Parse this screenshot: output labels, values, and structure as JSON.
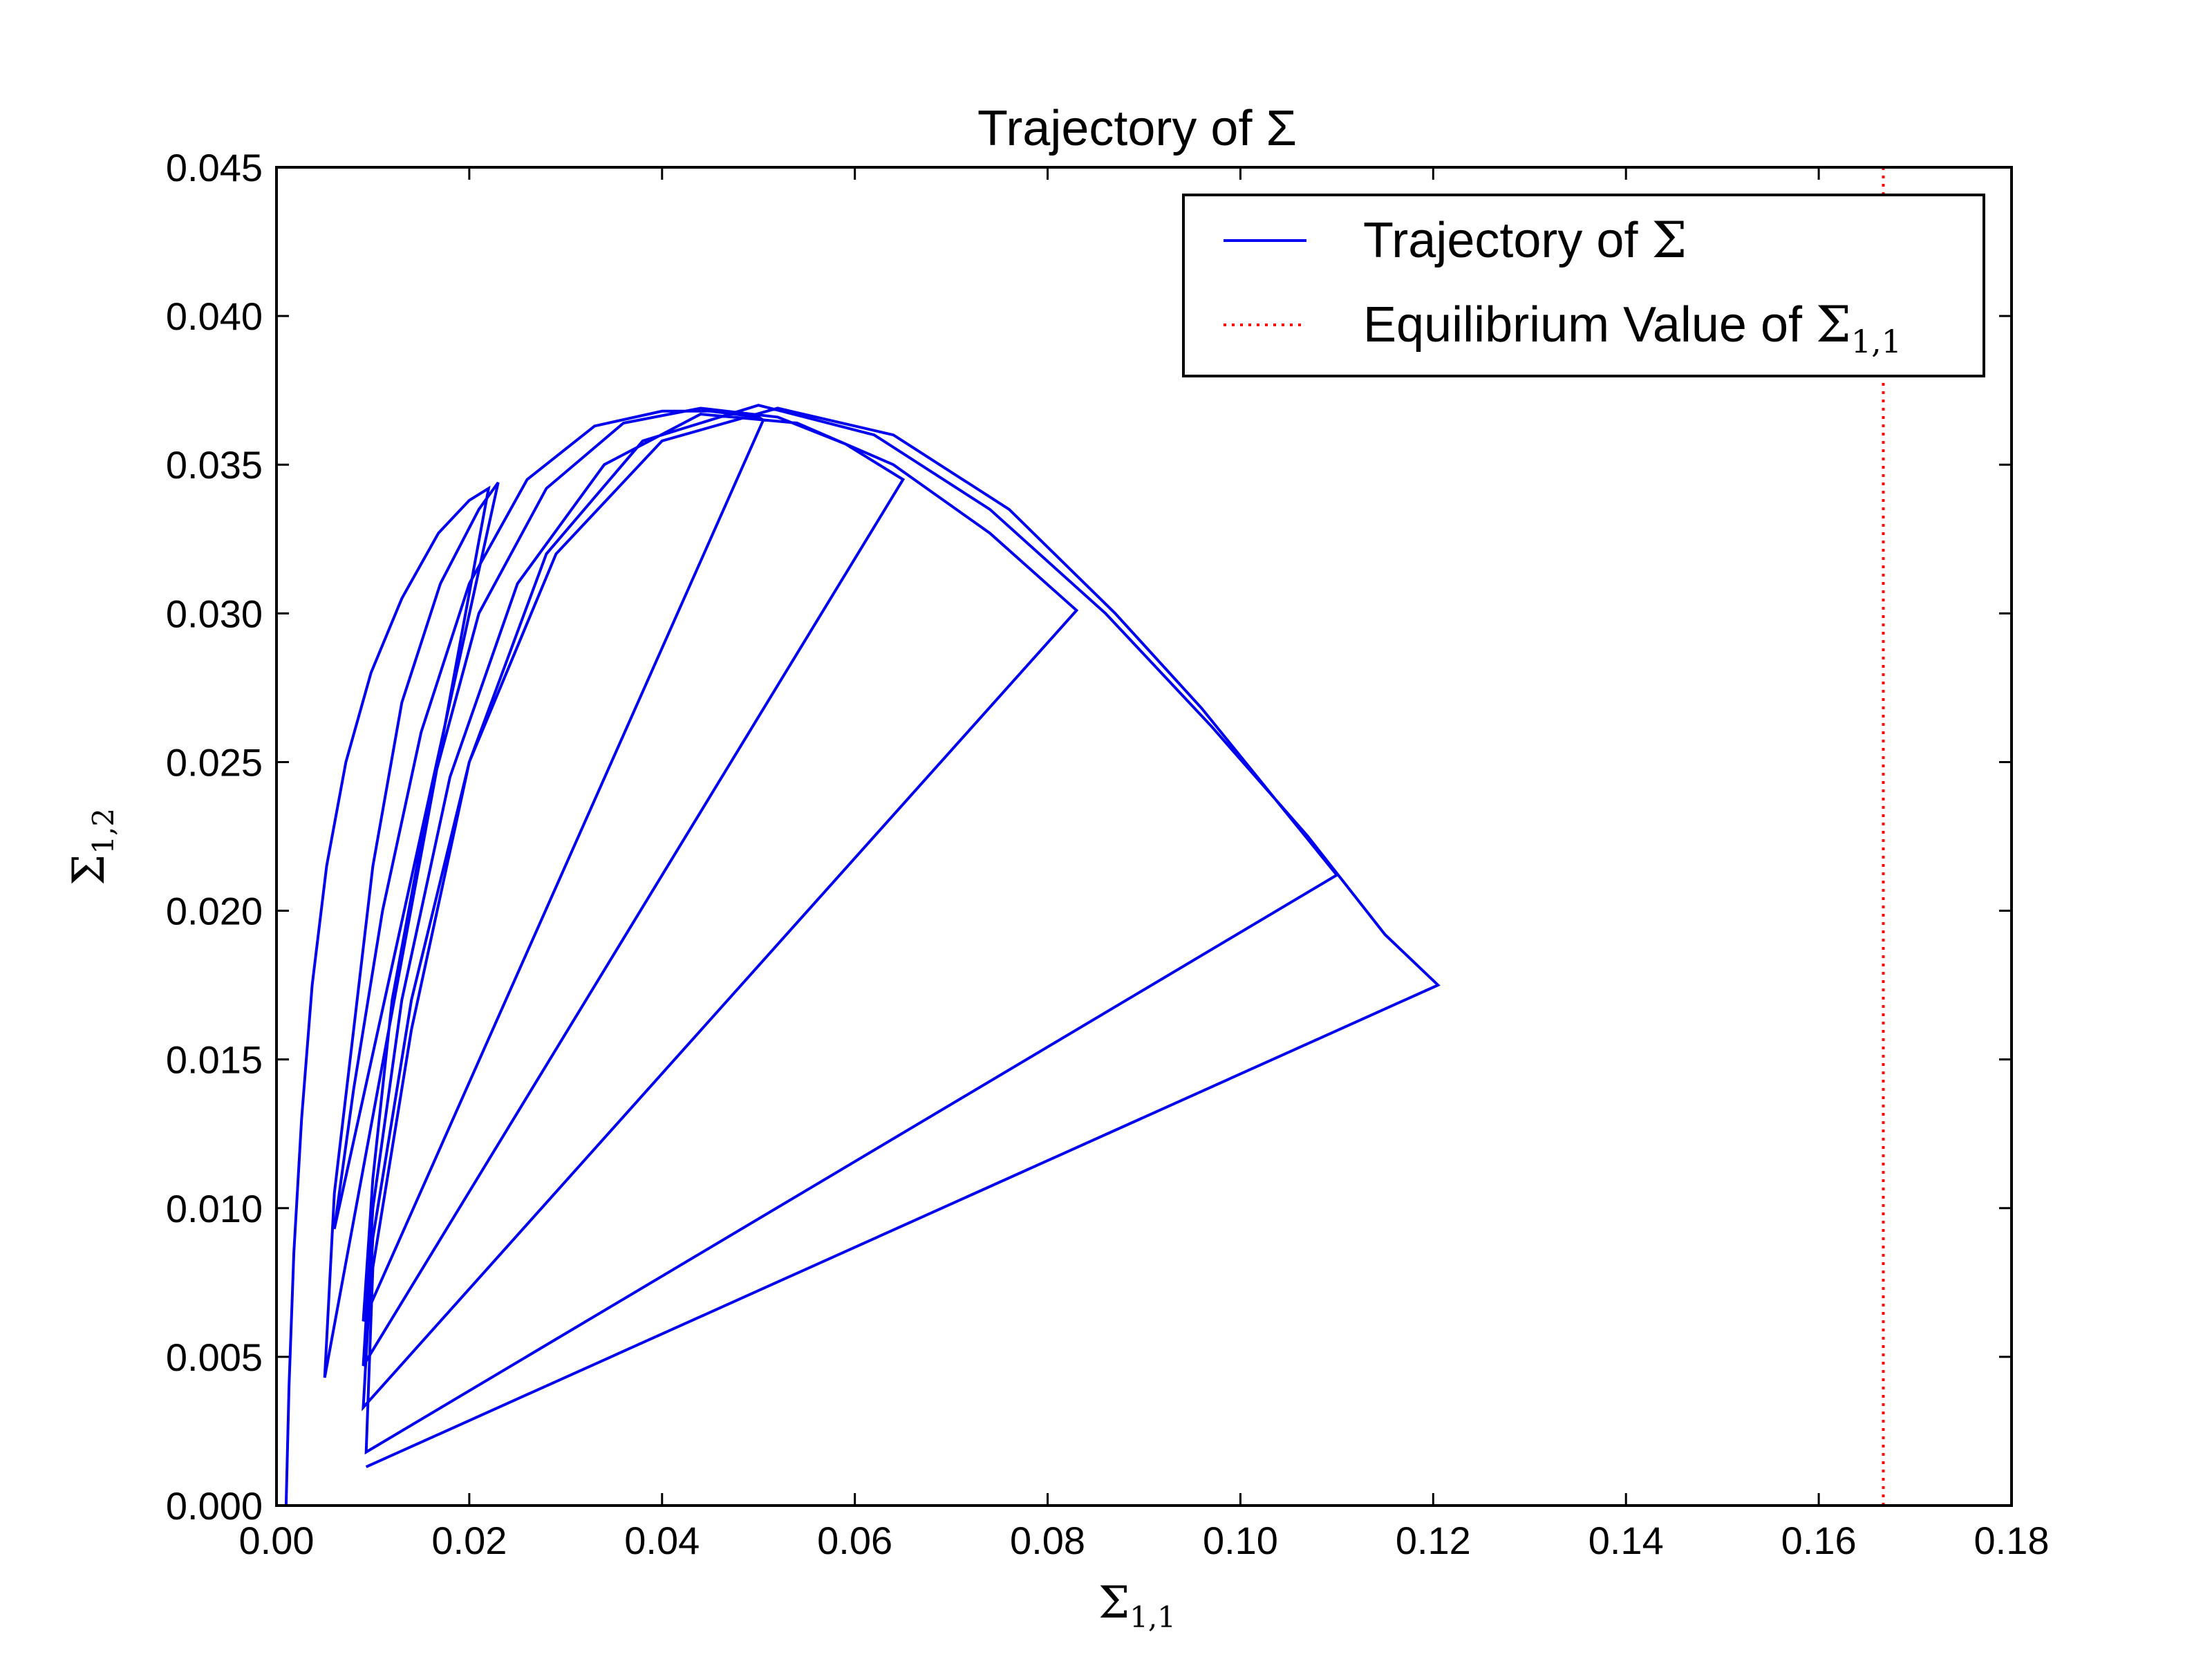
{
  "chart_data": {
    "type": "line",
    "title": "Trajectory of Σ",
    "xlabel": {
      "base": "Σ",
      "sub": "1,1"
    },
    "ylabel": {
      "base": "Σ",
      "sub": "1,2"
    },
    "xlim": [
      0.0,
      0.18
    ],
    "ylim": [
      0.0,
      0.045
    ],
    "xticks": [
      0.0,
      0.02,
      0.04,
      0.06,
      0.08,
      0.1,
      0.12,
      0.14,
      0.16,
      0.18
    ],
    "xtick_labels": [
      "0.00",
      "0.02",
      "0.04",
      "0.06",
      "0.08",
      "0.10",
      "0.12",
      "0.14",
      "0.16",
      "0.18"
    ],
    "yticks": [
      0.0,
      0.005,
      0.01,
      0.015,
      0.02,
      0.025,
      0.03,
      0.035,
      0.04,
      0.045
    ],
    "ytick_labels": [
      "0.000",
      "0.005",
      "0.010",
      "0.015",
      "0.020",
      "0.025",
      "0.030",
      "0.035",
      "0.040",
      "0.045"
    ],
    "grid": false,
    "legend_position": "top-right",
    "series": [
      {
        "name": "Trajectory of Σ",
        "legend": {
          "text": "Trajectory of ",
          "symbol": "Σ",
          "sub": ""
        },
        "color": "#0000ee",
        "style": "solid",
        "x": [
          0.001,
          0.0013,
          0.0018,
          0.0026,
          0.0037,
          0.0052,
          0.0072,
          0.0098,
          0.013,
          0.0168,
          0.02,
          0.022,
          0.005,
          0.006,
          0.008,
          0.01,
          0.013,
          0.017,
          0.021,
          0.023,
          0.006,
          0.008,
          0.011,
          0.015,
          0.02,
          0.026,
          0.033,
          0.04,
          0.045,
          0.05,
          0.0505,
          0.009,
          0.01,
          0.012,
          0.016,
          0.021,
          0.028,
          0.036,
          0.044,
          0.052,
          0.059,
          0.065,
          0.009,
          0.01,
          0.013,
          0.018,
          0.025,
          0.034,
          0.044,
          0.054,
          0.064,
          0.074,
          0.083,
          0.009,
          0.01,
          0.014,
          0.02,
          0.029,
          0.04,
          0.052,
          0.064,
          0.076,
          0.087,
          0.096,
          0.104,
          0.11,
          0.0093,
          0.01,
          0.014,
          0.02,
          0.028,
          0.038,
          0.05,
          0.062,
          0.074,
          0.086,
          0.097,
          0.107,
          0.115,
          0.1205,
          0.0093
        ],
        "y": [
          0.0,
          0.004,
          0.0085,
          0.013,
          0.0175,
          0.0215,
          0.025,
          0.028,
          0.0305,
          0.0327,
          0.0338,
          0.0342,
          0.0043,
          0.0105,
          0.016,
          0.0215,
          0.027,
          0.031,
          0.0335,
          0.0344,
          0.0093,
          0.014,
          0.02,
          0.026,
          0.031,
          0.0345,
          0.0363,
          0.0368,
          0.0368,
          0.0366,
          0.0365,
          0.0062,
          0.011,
          0.017,
          0.024,
          0.03,
          0.0342,
          0.0364,
          0.0369,
          0.0366,
          0.0357,
          0.0345,
          0.0047,
          0.01,
          0.017,
          0.0245,
          0.031,
          0.035,
          0.0367,
          0.0364,
          0.035,
          0.0327,
          0.0301,
          0.0033,
          0.009,
          0.017,
          0.025,
          0.032,
          0.0358,
          0.0369,
          0.036,
          0.0335,
          0.03,
          0.0268,
          0.0236,
          0.0212,
          0.0018,
          0.008,
          0.016,
          0.025,
          0.032,
          0.0358,
          0.037,
          0.036,
          0.0335,
          0.03,
          0.0262,
          0.0225,
          0.0192,
          0.0175,
          0.0013
        ]
      },
      {
        "name": "Equilibrium Value of Σ1,1",
        "legend": {
          "text": "Equilibrium Value of ",
          "symbol": "Σ",
          "sub": "1,1"
        },
        "color": "#ff0000",
        "style": "dotted",
        "x": [
          0.1667,
          0.1667
        ],
        "y": [
          0.0,
          0.045
        ]
      }
    ]
  }
}
